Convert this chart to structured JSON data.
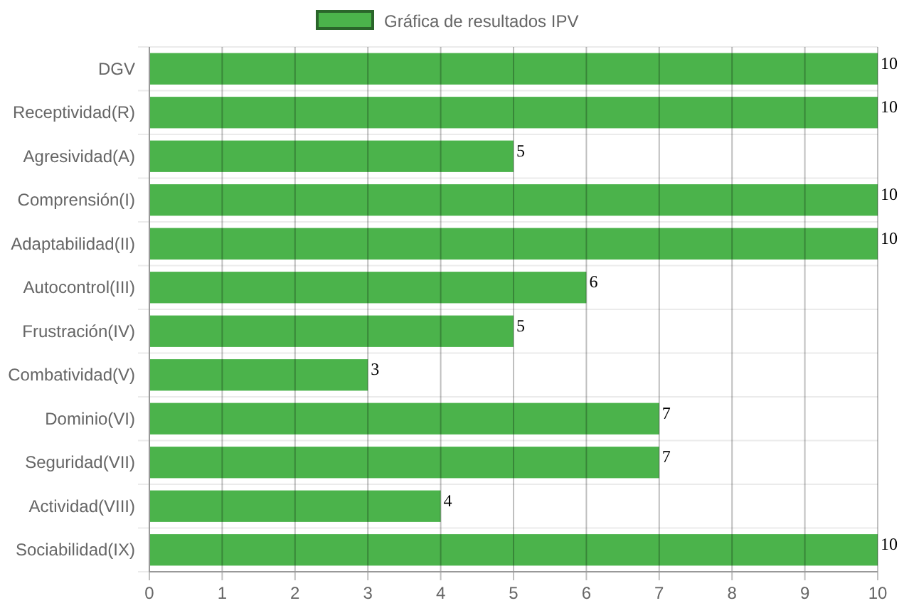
{
  "chart_data": {
    "type": "bar",
    "orientation": "horizontal",
    "categories": [
      "DGV",
      "Receptividad(R)",
      "Agresividad(A)",
      "Comprensión(I)",
      "Adaptabilidad(II)",
      "Autocontrol(III)",
      "Frustración(IV)",
      "Combatividad(V)",
      "Dominio(VI)",
      "Seguridad(VII)",
      "Actividad(VIII)",
      "Sociabilidad(IX)"
    ],
    "series": [
      {
        "name": "Gráfica de resultados IPV",
        "color": "#4bb34b",
        "values": [
          10,
          10,
          5,
          10,
          10,
          6,
          5,
          3,
          7,
          7,
          4,
          10
        ]
      }
    ],
    "xlim": [
      0,
      10
    ],
    "xticks": [
      0,
      1,
      2,
      3,
      4,
      5,
      6,
      7,
      8,
      9,
      10
    ],
    "grid": true,
    "legend": "top",
    "data_labels": true
  }
}
